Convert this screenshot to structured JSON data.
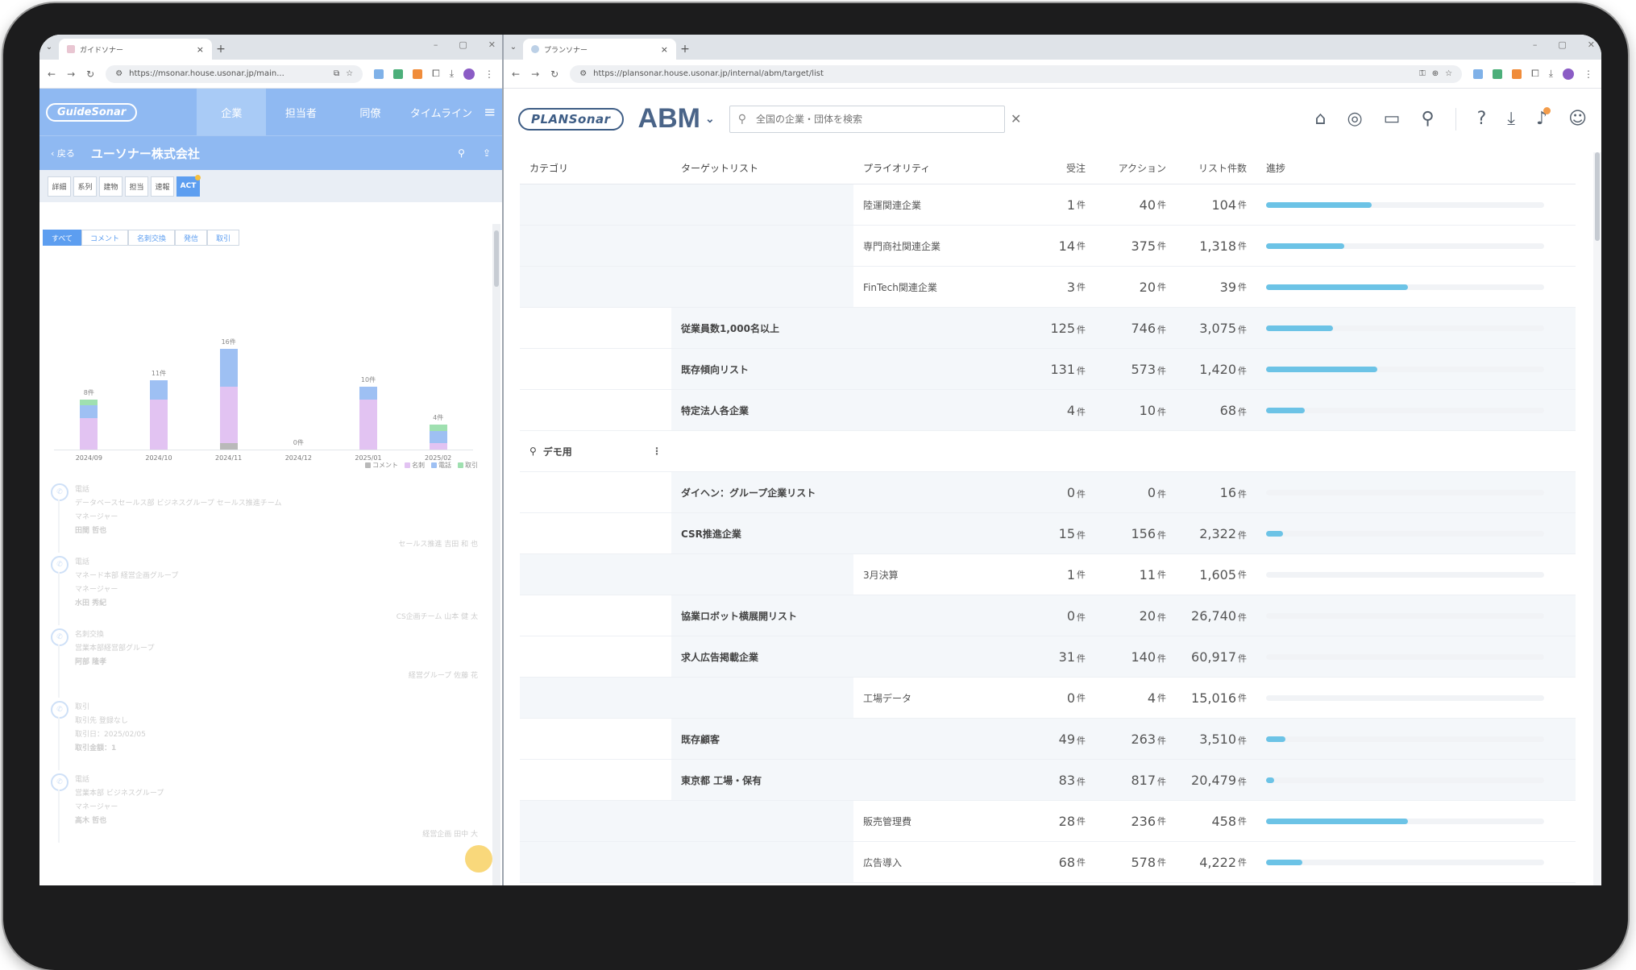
{
  "left_window": {
    "tab_title": "ガイドソナー",
    "url": "https://msonar.house.usonar.jp/main...",
    "app": {
      "logo": "GuideSonar",
      "nav": [
        {
          "label": "企業",
          "active": true
        },
        {
          "label": "担当者",
          "active": false
        },
        {
          "label": "同僚",
          "active": false
        },
        {
          "label": "タイムライン",
          "active": false
        }
      ],
      "back_label": "戻る",
      "company_name": "ユーソナー株式会社",
      "sub_tabs": [
        "詳細",
        "系列",
        "建物",
        "担当",
        "速報",
        "ACT"
      ],
      "filters": [
        "すべて",
        "コメント",
        "名刺交換",
        "発信",
        "取引"
      ],
      "chart_data": {
        "type": "bar",
        "categories": [
          "2024/09",
          "2024/10",
          "2024/11",
          "2024/12",
          "2025/01",
          "2025/02"
        ],
        "data_labels": [
          "8件",
          "11件",
          "16件",
          "0件",
          "10件",
          "4件"
        ],
        "series": [
          {
            "name": "コメント",
            "color": "#b9b9b9",
            "values": [
              0,
              0,
              1,
              0,
              0,
              0
            ]
          },
          {
            "name": "名刺",
            "color": "#e2c3f2",
            "values": [
              5,
              8,
              9,
              0,
              8,
              1
            ]
          },
          {
            "name": "電話",
            "color": "#9ec0f3",
            "values": [
              2,
              3,
              6,
              0,
              2,
              2
            ]
          },
          {
            "name": "取引",
            "color": "#9fe0b0",
            "values": [
              1,
              0,
              0,
              0,
              0,
              1
            ]
          }
        ],
        "ylim": [
          0,
          16
        ]
      },
      "timeline": [
        {
          "type": "電話",
          "line1": "データベースセールス部 ビジネスグループ セールス推進チーム",
          "line2": "マネージャー",
          "name": "田間 哲也",
          "footer": "セールス推進 吉田 和 也"
        },
        {
          "type": "電話",
          "line1": "マネード本部 経営企画グループ",
          "line2": "マネージャー",
          "name": "水田 秀紀",
          "footer": "CS企画チーム 山本 健 太"
        },
        {
          "type": "名刺交換",
          "line1": "営業本部経営部グループ",
          "line2": "",
          "name": "阿部 隆孝",
          "footer": "経営グループ 佐藤 花"
        },
        {
          "type": "取引",
          "line1": "取引先 登録なし",
          "line2": "取引日：2025/02/05",
          "name": "取引金額：1",
          "footer": ""
        },
        {
          "type": "電話",
          "line1": "営業本部 ビジネスグループ",
          "line2": "マネージャー",
          "name": "高木 哲也",
          "footer": "経営企画 田中 大"
        }
      ]
    }
  },
  "right_window": {
    "tab_title": "プランソナー",
    "url": "https://plansonar.house.usonar.jp/internal/abm/target/list",
    "app": {
      "logo": "PLANSonar",
      "title": "ABM",
      "search_placeholder": "全国の企業・団体を検索",
      "header_icons": [
        "home-icon",
        "target-icon",
        "monitor-search-icon",
        "zoom-icon",
        "help-icon",
        "download-icon",
        "bell-icon",
        "user-icon"
      ],
      "table": {
        "headers": {
          "category": "カテゴリ",
          "target": "ターゲットリスト",
          "priority": "プライオリティ",
          "orders": "受注",
          "actions": "アクション",
          "count": "リスト件数",
          "progress": "進捗"
        },
        "unit": "件",
        "rows": [
          {
            "kind": "priority",
            "category": "",
            "target": "",
            "priority": "陸運関連企業",
            "orders": "1",
            "actions": "40",
            "count": "104",
            "progress": 0.38
          },
          {
            "kind": "priority",
            "category": "",
            "target": "",
            "priority": "専門商社関連企業",
            "orders": "14",
            "actions": "375",
            "count": "1,318",
            "progress": 0.28
          },
          {
            "kind": "priority",
            "category": "",
            "target": "",
            "priority": "FinTech関連企業",
            "orders": "3",
            "actions": "20",
            "count": "39",
            "progress": 0.51
          },
          {
            "kind": "target",
            "category": "",
            "target": "従業員数1,000名以上",
            "priority": "",
            "orders": "125",
            "actions": "746",
            "count": "3,075",
            "progress": 0.24
          },
          {
            "kind": "target",
            "category": "",
            "target": "既存傾向リスト",
            "priority": "",
            "orders": "131",
            "actions": "573",
            "count": "1,420",
            "progress": 0.4
          },
          {
            "kind": "target",
            "category": "",
            "target": "特定法人各企業",
            "priority": "",
            "orders": "4",
            "actions": "10",
            "count": "68",
            "progress": 0.14
          },
          {
            "kind": "category",
            "category": "デモ用",
            "target": "",
            "priority": "",
            "orders": "",
            "actions": "",
            "count": "",
            "progress": null
          },
          {
            "kind": "target",
            "category": "",
            "target": "ダイヘン：グループ企業リスト",
            "priority": "",
            "orders": "0",
            "actions": "0",
            "count": "16",
            "progress": 0
          },
          {
            "kind": "target",
            "category": "",
            "target": "CSR推進企業",
            "priority": "",
            "orders": "15",
            "actions": "156",
            "count": "2,322",
            "progress": 0.06
          },
          {
            "kind": "priority",
            "category": "",
            "target": "",
            "priority": "3月決算",
            "orders": "1",
            "actions": "11",
            "count": "1,605",
            "progress": 0
          },
          {
            "kind": "target",
            "category": "",
            "target": "協業ロボット横展開リスト",
            "priority": "",
            "orders": "0",
            "actions": "20",
            "count": "26,740",
            "progress": 0
          },
          {
            "kind": "target",
            "category": "",
            "target": "求人広告掲載企業",
            "priority": "",
            "orders": "31",
            "actions": "140",
            "count": "60,917",
            "progress": 0
          },
          {
            "kind": "priority",
            "category": "",
            "target": "",
            "priority": "工場データ",
            "orders": "0",
            "actions": "4",
            "count": "15,016",
            "progress": 0
          },
          {
            "kind": "target",
            "category": "",
            "target": "既存顧客",
            "priority": "",
            "orders": "49",
            "actions": "263",
            "count": "3,510",
            "progress": 0.07
          },
          {
            "kind": "target",
            "category": "",
            "target": "東京都 工場・保有",
            "priority": "",
            "orders": "83",
            "actions": "817",
            "count": "20,479",
            "progress": 0.03
          },
          {
            "kind": "priority",
            "category": "",
            "target": "",
            "priority": "販売管理費",
            "orders": "28",
            "actions": "236",
            "count": "458",
            "progress": 0.51
          },
          {
            "kind": "priority",
            "category": "",
            "target": "",
            "priority": "広告導入",
            "orders": "68",
            "actions": "578",
            "count": "4,222",
            "progress": 0.13
          }
        ]
      }
    }
  }
}
